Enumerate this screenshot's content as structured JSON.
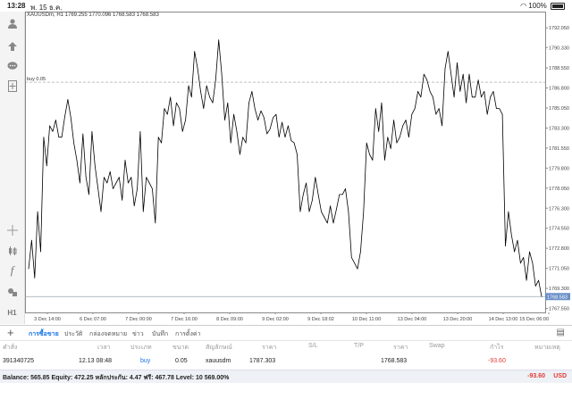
{
  "status_bar": {
    "time": "13:28",
    "date": "พ. 15 ธ.ค.",
    "battery": "100%"
  },
  "chart": {
    "header": "XAUUSDm, H1  1769.255 1770.096 1768.583 1768.583",
    "buy_label": "buy 0.05",
    "current_price_label": "1768.583",
    "line_color": "#000000",
    "buy_line_color": "#999999"
  },
  "chart_data": {
    "type": "line",
    "title": "XAUUSDm, H1",
    "y_ticks": [
      "1792.050",
      "1790.330",
      "1788.550",
      "1786.800",
      "1785.050",
      "1783.300",
      "1781.550",
      "1779.800",
      "1778.050",
      "1776.300",
      "1774.550",
      "1772.800",
      "1771.050",
      "1769.300",
      "1767.550"
    ],
    "x_ticks": [
      "3 Dec 14:00",
      "6 Dec 07:00",
      "7 Dec 00:00",
      "7 Dec 16:00",
      "8 Dec 09:00",
      "9 Dec 02:00",
      "9 Dec 18:02",
      "10 Dec 11:00",
      "13 Dec 04:00",
      "13 Dec 20:00",
      "14 Dec 13:00",
      "15 Dec 06:00"
    ],
    "ylim": [
      1767.2,
      1793.0
    ],
    "buy_level": 1787.303,
    "current_price": 1768.583,
    "values": [
      1771.0,
      1773.5,
      1770.2,
      1776.0,
      1772.5,
      1782.5,
      1780.0,
      1783.5,
      1783.0,
      1784.0,
      1782.5,
      1782.5,
      1784.3,
      1785.8,
      1784.2,
      1782.0,
      1780.5,
      1778.5,
      1782.8,
      1779.0,
      1777.5,
      1783.0,
      1780.0,
      1778.0,
      1776.0,
      1779.0,
      1778.5,
      1779.5,
      1778.0,
      1778.5,
      1779.0,
      1777.0,
      1780.5,
      1778.5,
      1779.0,
      1776.5,
      1778.0,
      1783.0,
      1776.0,
      1779.0,
      1778.5,
      1778.0,
      1775.0,
      1782.5,
      1782.0,
      1785.0,
      1784.5,
      1786.0,
      1783.5,
      1785.5,
      1785.0,
      1783.0,
      1784.0,
      1787.0,
      1786.0,
      1790.0,
      1788.5,
      1786.5,
      1785.0,
      1787.0,
      1786.0,
      1785.5,
      1787.5,
      1791.0,
      1788.0,
      1784.0,
      1785.5,
      1782.0,
      1784.5,
      1783.0,
      1781.0,
      1782.5,
      1782.0,
      1785.5,
      1786.5,
      1785.0,
      1784.0,
      1784.8,
      1784.2,
      1782.8,
      1783.2,
      1784.2,
      1784.5,
      1782.5,
      1783.8,
      1782.5,
      1783.5,
      1782.2,
      1782.0,
      1781.0,
      1776.0,
      1777.5,
      1778.5,
      1776.0,
      1777.0,
      1779.0,
      1777.5,
      1776.0,
      1775.5,
      1775.0,
      1776.5,
      1775.0,
      1776.2,
      1777.5,
      1777.5,
      1778.0,
      1776.0,
      1772.0,
      1771.5,
      1771.0,
      1772.5,
      1776.0,
      1782.0,
      1781.0,
      1780.5,
      1785.0,
      1783.0,
      1785.5,
      1780.5,
      1782.5,
      1781.5,
      1784.0,
      1782.0,
      1782.5,
      1783.5,
      1784.0,
      1782.5,
      1784.5,
      1785.0,
      1786.5,
      1786.0,
      1788.0,
      1787.5,
      1786.5,
      1786.0,
      1784.5,
      1785.0,
      1783.5,
      1788.5,
      1790.0,
      1788.0,
      1786.0,
      1789.0,
      1786.5,
      1788.0,
      1785.5,
      1788.0,
      1786.0,
      1786.0,
      1787.5,
      1786.0,
      1786.5,
      1784.5,
      1786.0,
      1786.5,
      1785.0,
      1785.0,
      1784.5,
      1773.0,
      1776.0,
      1774.0,
      1772.5,
      1773.5,
      1771.5,
      1772.0,
      1770.0,
      1772.5,
      1771.5,
      1769.5,
      1770.0,
      1768.583
    ]
  },
  "tabs": [
    {
      "label": "การซื้อขาย",
      "active": true
    },
    {
      "label": "ประวัติ",
      "active": false
    },
    {
      "label": "กล่องจดหมาย",
      "active": false
    },
    {
      "label": "ข่าว",
      "active": false
    },
    {
      "label": "บันทึก",
      "active": false
    },
    {
      "label": "การตั้งค่า",
      "active": false
    }
  ],
  "table": {
    "headers": [
      "คำสั่ง",
      "เวลา",
      "ประเภท",
      "ขนาด",
      "สัญลักษณ์",
      "ราคา",
      "S/L",
      "T/P",
      "ราคา",
      "Swap",
      "กำไร",
      "หมายเหตุ"
    ],
    "rows": [
      {
        "order": "391340725",
        "time": "12.13 08:48",
        "type": "buy",
        "size": "0.05",
        "symbol": "xauusdm",
        "open_price": "1787.303",
        "sl": "",
        "tp": "",
        "price": "1768.583",
        "swap": "",
        "profit": "-93.60",
        "comment": ""
      }
    ]
  },
  "footer": {
    "summary": "Balance: 565.85  Equity: 472.25  หลักประกัน: 4.47  ฟรี: 467.78  Level: 10 569.00%",
    "profit": "-93.60",
    "currency": "USD"
  },
  "colors": {
    "accent": "#1a73e8",
    "loss": "#e53935",
    "price_tag": "#6a8fc7"
  }
}
